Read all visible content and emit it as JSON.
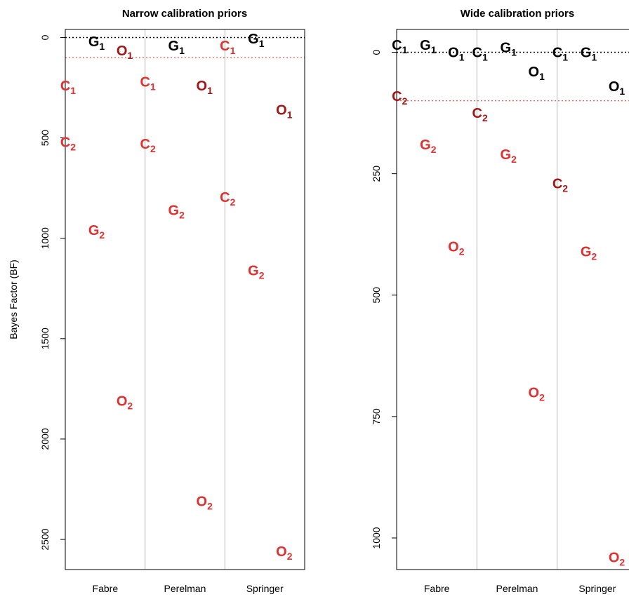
{
  "chart_data": [
    {
      "type": "scatter",
      "title": "Narrow calibration priors",
      "ylabel": "Bayes Factor (BF)",
      "xlabel": "",
      "categories": [
        "Fabre",
        "Perelman",
        "Springer"
      ],
      "ylim": [
        2650,
        -40
      ],
      "y_reversed": true,
      "yticks": [
        0,
        500,
        1000,
        1500,
        2000,
        2500
      ],
      "reference_lines": [
        {
          "y": 0,
          "color": "#000000",
          "style": "dotted"
        },
        {
          "y": 100,
          "color": "#e03030",
          "style": "dotted"
        }
      ],
      "series": [
        {
          "label": "C",
          "sub": "1",
          "color": "#e03030",
          "values": [
            240,
            220,
            40
          ]
        },
        {
          "label": "C",
          "sub": "2",
          "color": "#e03030",
          "values": [
            520,
            530,
            795
          ]
        },
        {
          "label": "G",
          "sub": "1",
          "color": "#000000",
          "values": [
            20,
            40,
            5
          ]
        },
        {
          "label": "G",
          "sub": "2",
          "color": "#e03030",
          "values": [
            960,
            860,
            1160
          ]
        },
        {
          "label": "O",
          "sub": "1",
          "color": "#a01818",
          "values": [
            65,
            240,
            360
          ]
        },
        {
          "label": "O",
          "sub": "2",
          "color": "#e03030",
          "values": [
            1810,
            2310,
            2560
          ]
        }
      ]
    },
    {
      "type": "scatter",
      "title": "Wide calibration priors",
      "ylabel": "",
      "xlabel": "",
      "categories": [
        "Fabre",
        "Perelman",
        "Springer"
      ],
      "ylim": [
        1065,
        -47
      ],
      "y_reversed": true,
      "yticks": [
        0,
        250,
        500,
        750,
        1000
      ],
      "reference_lines": [
        {
          "y": 0,
          "color": "#000000",
          "style": "dotted"
        },
        {
          "y": 100,
          "color": "#e03030",
          "style": "dotted"
        }
      ],
      "series": [
        {
          "label": "C",
          "sub": "1",
          "color": "#000000",
          "values": [
            -15,
            0,
            0
          ]
        },
        {
          "label": "C",
          "sub": "2",
          "color": "#a01818",
          "values": [
            90,
            125,
            270
          ]
        },
        {
          "label": "G",
          "sub": "1",
          "color": "#000000",
          "values": [
            -15,
            -10,
            0
          ]
        },
        {
          "label": "G",
          "sub": "2",
          "color": "#e03030",
          "values": [
            190,
            210,
            410
          ]
        },
        {
          "label": "O",
          "sub": "1",
          "color": "#000000",
          "values": [
            0,
            40,
            70
          ]
        },
        {
          "label": "O",
          "sub": "2",
          "color": "#e03030",
          "values": [
            400,
            700,
            1040
          ]
        }
      ]
    }
  ]
}
